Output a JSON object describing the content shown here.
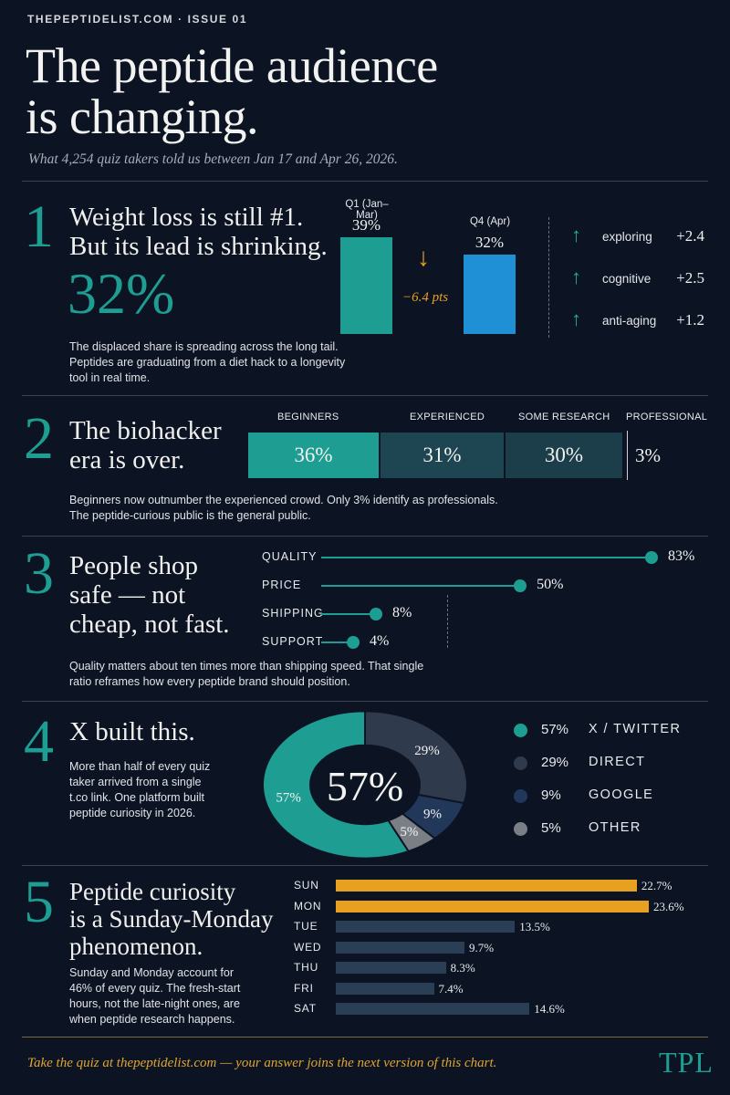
{
  "header": {
    "kicker": "THEPEPTIDELIST.COM · ISSUE 01",
    "headline_1": "The peptide audience",
    "headline_2": "is changing.",
    "subline": "What 4,254 quiz takers told us between Jan 17 and Apr 26, 2026."
  },
  "sections": {
    "s1": {
      "number": "1",
      "title_1": "Weight loss is still #1.",
      "title_2": "But its lead is shrinking.",
      "big_stat": "32%",
      "body_1": "The displaced share is spreading across the long tail.",
      "body_2": "Peptides are graduating from a diet hack to a longevity",
      "body_3": "tool in real time.",
      "delta_label": "−6.4 pts",
      "down_arrow": "↓"
    },
    "s2": {
      "number": "2",
      "title_1": "The biohacker",
      "title_2": "era is over.",
      "body_1": "Beginners now outnumber the experienced crowd. Only 3% identify as professionals.",
      "body_2": "The peptide-curious public is the general public."
    },
    "s3": {
      "number": "3",
      "title_1": "People shop",
      "title_2": "safe — not",
      "title_3": "cheap, not fast.",
      "body_1": "Quality matters about ten times more than shipping speed. That single",
      "body_2": "ratio reframes how every peptide brand should position."
    },
    "s4": {
      "number": "4",
      "title": "X built this.",
      "body_1": "More than half of every quiz",
      "body_2": "taker arrived from a single",
      "body_3": "t.co link. One platform built",
      "body_4": "peptide curiosity in 2026.",
      "center_label": "57%"
    },
    "s5": {
      "number": "5",
      "title_1": "Peptide curiosity",
      "title_2": "is a Sunday-Monday",
      "title_3": "phenomenon.",
      "body_1": "Sunday and Monday account for",
      "body_2": "46% of every quiz. The fresh-start",
      "body_3": "hours, not the late-night ones, are",
      "body_4": "when peptide research happens."
    }
  },
  "footer": {
    "text": "Take the quiz at thepeptidelist.com — your answer joins the next version of this chart.",
    "logo": "TPL"
  },
  "colors": {
    "teal": "#1e9e93",
    "blue": "#1f8fd6",
    "gold": "#e8a020",
    "navy": "#2a3f55",
    "slate": "#3b4658",
    "gray": "#7a7e85"
  },
  "chart_data": [
    {
      "type": "bar",
      "categories": [
        "Q1 (Jan–Mar)",
        "Q4 (Apr)"
      ],
      "values": [
        39,
        32
      ],
      "value_labels": [
        "39%",
        "32%"
      ]
    },
    {
      "type": "table",
      "rows": [
        {
          "label": "exploring",
          "change": "+2.4",
          "icon": "up-arrow-icon"
        },
        {
          "label": "cognitive",
          "change": "+2.5",
          "icon": "up-arrow-icon"
        },
        {
          "label": "anti-aging",
          "change": "+1.2",
          "icon": "up-arrow-icon"
        }
      ]
    },
    {
      "type": "bar",
      "orientation": "stacked-horizontal",
      "categories": [
        "BEGINNERS",
        "EXPERIENCED",
        "SOME RESEARCH",
        "PROFESSIONAL"
      ],
      "values": [
        36,
        31,
        30,
        3
      ],
      "value_labels": [
        "36%",
        "31%",
        "30%",
        "3%"
      ]
    },
    {
      "type": "scatter",
      "style": "lollipop",
      "categories": [
        "QUALITY",
        "PRICE",
        "SHIPPING",
        "SUPPORT"
      ],
      "values": [
        83,
        50,
        8,
        4
      ],
      "value_labels": [
        "83%",
        "50%",
        "8%",
        "4%"
      ]
    },
    {
      "type": "pie",
      "style": "donut",
      "categories": [
        "X / TWITTER",
        "DIRECT",
        "GOOGLE",
        "OTHER"
      ],
      "values": [
        57,
        29,
        9,
        5
      ],
      "value_labels": [
        "57%",
        "29%",
        "9%",
        "5%"
      ],
      "colors": [
        "#1e9e93",
        "#2f3a4d",
        "#22385a",
        "#7a7e85"
      ],
      "legend": "right"
    },
    {
      "type": "bar",
      "orientation": "horizontal",
      "categories": [
        "SUN",
        "MON",
        "TUE",
        "WED",
        "THU",
        "FRI",
        "SAT"
      ],
      "values": [
        22.7,
        23.6,
        13.5,
        9.7,
        8.3,
        7.4,
        14.6
      ],
      "value_labels": [
        "22.7%",
        "23.6%",
        "13.5%",
        "9.7%",
        "8.3%",
        "7.4%",
        "14.6%"
      ],
      "highlight": [
        "SUN",
        "MON"
      ]
    }
  ]
}
